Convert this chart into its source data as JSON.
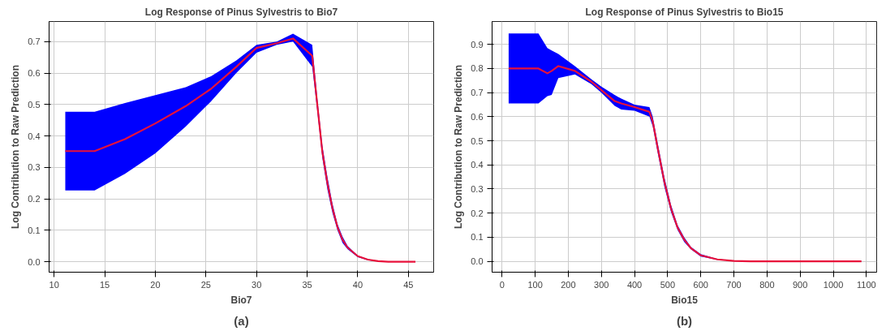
{
  "chart_data": [
    {
      "type": "line",
      "title": "Log Response of Pinus Sylvestris to Bio7",
      "xlabel": "Bio7",
      "ylabel": "Log Contribution to Raw Prediction",
      "annotations": [
        "(a)"
      ],
      "x": [
        11.1,
        14,
        17,
        20,
        23,
        25.5,
        28,
        30,
        32,
        33.6,
        35.5,
        36,
        36.5,
        37,
        37.5,
        38,
        38.5,
        39,
        40,
        41,
        42,
        43,
        45.7
      ],
      "series": [
        {
          "color": "#e8113a",
          "values": [
            0.352,
            0.352,
            0.39,
            0.44,
            0.495,
            0.55,
            0.62,
            0.68,
            0.695,
            0.71,
            0.655,
            0.5,
            0.35,
            0.25,
            0.17,
            0.11,
            0.07,
            0.045,
            0.018,
            0.007,
            0.002,
            0.0,
            0.0
          ],
          "upper": [
            0.477,
            0.477,
            0.505,
            0.53,
            0.555,
            0.59,
            0.64,
            0.69,
            0.7,
            0.725,
            0.69,
            0.52,
            0.37,
            0.27,
            0.185,
            0.12,
            0.08,
            0.05,
            0.02,
            0.008,
            0.003,
            0.001,
            0.001
          ],
          "lower": [
            0.227,
            0.227,
            0.28,
            0.345,
            0.43,
            0.51,
            0.6,
            0.665,
            0.69,
            0.7,
            0.62,
            0.48,
            0.33,
            0.23,
            0.155,
            0.1,
            0.06,
            0.04,
            0.015,
            0.005,
            0.001,
            0.0,
            0.0
          ]
        }
      ],
      "xlim": [
        9.5,
        47.5
      ],
      "ylim": [
        -0.033,
        0.764
      ],
      "xticks": [
        10,
        15,
        20,
        25,
        30,
        35,
        40,
        45
      ],
      "yticks": [
        {
          "value": 0,
          "label": "0.0"
        },
        {
          "value": 0.1,
          "label": "0.1"
        },
        {
          "value": 0.2,
          "label": "0.2"
        },
        {
          "value": 0.3,
          "label": "0.3"
        },
        {
          "value": 0.4,
          "label": "0.4"
        },
        {
          "value": 0.5,
          "label": "0.5"
        },
        {
          "value": 0.6,
          "label": "0.6"
        },
        {
          "value": 0.7,
          "label": "0.7"
        }
      ],
      "grid": true,
      "marker": "none",
      "line_style": "solid"
    },
    {
      "type": "line",
      "title": "Log Response of Pinus Sylvestris to Bio15",
      "xlabel": "Bio15",
      "ylabel": "Log Contribution to Raw Prediction",
      "annotations": [
        "(b)"
      ],
      "x": [
        20,
        110,
        137,
        150,
        170,
        220,
        270,
        300,
        340,
        360,
        400,
        445,
        455,
        470,
        490,
        510,
        530,
        550,
        570,
        600,
        650,
        700,
        750,
        1085
      ],
      "series": [
        {
          "color": "#e8113a",
          "values": [
            0.8,
            0.8,
            0.78,
            0.79,
            0.81,
            0.79,
            0.745,
            0.71,
            0.665,
            0.655,
            0.64,
            0.62,
            0.58,
            0.47,
            0.33,
            0.22,
            0.14,
            0.09,
            0.055,
            0.025,
            0.008,
            0.002,
            0.0,
            0.0
          ],
          "upper": [
            0.945,
            0.945,
            0.885,
            0.875,
            0.86,
            0.81,
            0.755,
            0.725,
            0.69,
            0.675,
            0.65,
            0.64,
            0.6,
            0.49,
            0.35,
            0.235,
            0.15,
            0.1,
            0.06,
            0.03,
            0.01,
            0.003,
            0.001,
            0.001
          ],
          "lower": [
            0.655,
            0.655,
            0.685,
            0.69,
            0.76,
            0.775,
            0.735,
            0.7,
            0.645,
            0.63,
            0.625,
            0.6,
            0.56,
            0.45,
            0.31,
            0.205,
            0.13,
            0.08,
            0.05,
            0.02,
            0.006,
            0.001,
            0.0,
            0.0
          ]
        }
      ],
      "xlim": [
        -30,
        1131
      ],
      "ylim": [
        -0.045,
        0.995
      ],
      "xticks": [
        0,
        100,
        200,
        300,
        400,
        500,
        600,
        700,
        800,
        900,
        1000,
        1100
      ],
      "yticks": [
        {
          "value": 0,
          "label": "0.0"
        },
        {
          "value": 0.1,
          "label": "0.1"
        },
        {
          "value": 0.2,
          "label": "0.2"
        },
        {
          "value": 0.3,
          "label": "0.3"
        },
        {
          "value": 0.4,
          "label": "0.4"
        },
        {
          "value": 0.5,
          "label": "0.5"
        },
        {
          "value": 0.6,
          "label": "0.6"
        },
        {
          "value": 0.7,
          "label": "0.7"
        },
        {
          "value": 0.8,
          "label": "0.8"
        },
        {
          "value": 0.9,
          "label": "0.9"
        }
      ],
      "grid": true,
      "marker": "none",
      "line_style": "solid"
    }
  ]
}
